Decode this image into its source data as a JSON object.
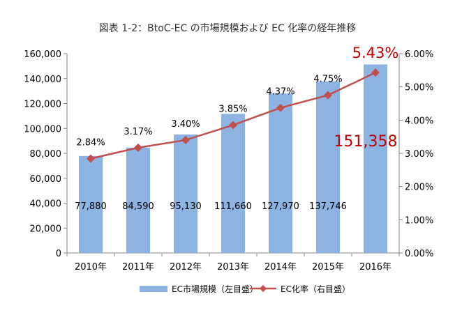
{
  "chart_data": {
    "type": "bar",
    "title": "図表 1-2：BtoC-EC の市場規模および EC 化率の経年推移",
    "categories": [
      "2010年",
      "2011年",
      "2012年",
      "2013年",
      "2014年",
      "2015年",
      "2016年"
    ],
    "series": [
      {
        "name": "EC市場規模（左目盛）",
        "type": "bar",
        "axis": "left",
        "color": "#8db3e2",
        "values": [
          77880,
          84590,
          95130,
          111660,
          127970,
          137746,
          151358
        ],
        "labels": [
          "77,880",
          "84,590",
          "95,130",
          "111,660",
          "127,970",
          "137,746",
          "151,358"
        ]
      },
      {
        "name": "EC化率（右目盛）",
        "type": "line",
        "axis": "right",
        "color": "#c0504d",
        "values": [
          2.84,
          3.17,
          3.4,
          3.85,
          4.37,
          4.75,
          5.43
        ],
        "labels": [
          "2.84%",
          "3.17%",
          "3.40%",
          "3.85%",
          "4.37%",
          "4.75%",
          "5.43%"
        ]
      }
    ],
    "y_left": {
      "min": 0,
      "max": 160000,
      "ticks": [
        "0",
        "20,000",
        "40,000",
        "60,000",
        "80,000",
        "100,000",
        "120,000",
        "140,000",
        "160,000"
      ]
    },
    "y_right": {
      "min": 0,
      "max": 6,
      "ticks": [
        "0.00%",
        "1.00%",
        "2.00%",
        "3.00%",
        "4.00%",
        "5.00%",
        "6.00%"
      ]
    },
    "highlight_color": "#c00000",
    "grid": false,
    "legend_position": "bottom"
  }
}
